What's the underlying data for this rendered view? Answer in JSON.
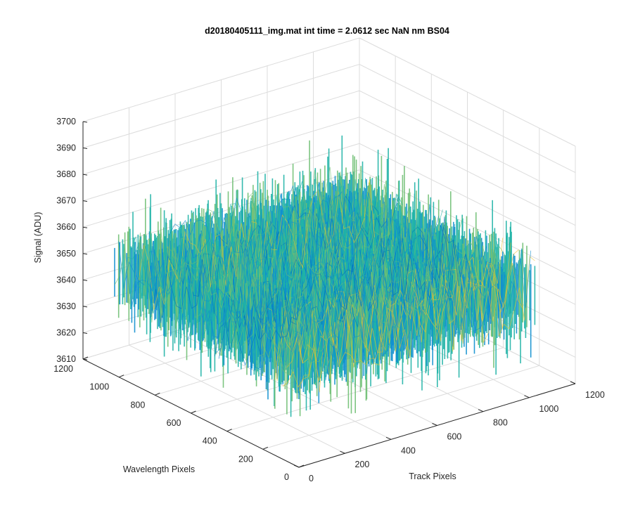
{
  "chart_data": {
    "type": "surface",
    "title": "d20180405111_img.mat int time = 2.0612 sec  NaN nm BS04",
    "xlabel": "Track Pixels",
    "ylabel": "Wavelength Pixels",
    "zlabel": "Signal (ADU)",
    "xlim": [
      0,
      1200
    ],
    "ylim": [
      0,
      1200
    ],
    "zlim": [
      3610,
      3700
    ],
    "xticks": [
      "0",
      "200",
      "400",
      "600",
      "800",
      "1000",
      "1200"
    ],
    "yticks": [
      "0",
      "200",
      "400",
      "600",
      "800",
      "1000",
      "1200"
    ],
    "zticks": [
      "3610",
      "3620",
      "3630",
      "3640",
      "3650",
      "3660",
      "3670",
      "3680",
      "3690",
      "3700"
    ],
    "surface_extent": {
      "x": [
        0,
        1024
      ],
      "y": [
        0,
        1024
      ]
    },
    "signal_mean": 3650,
    "signal_range": [
      3612,
      3693
    ],
    "grid": true,
    "colormap": "parula",
    "colors": {
      "low": "#0072bd",
      "mid": "#1fb3a6",
      "high": "#edc32b"
    }
  }
}
